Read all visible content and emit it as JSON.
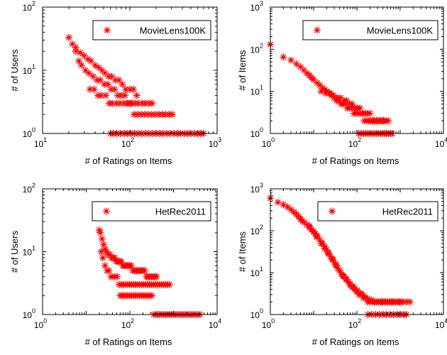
{
  "colors": {
    "marker": "#ff0000",
    "axis": "#000000",
    "background": "#ffffff"
  },
  "chart_data": [
    {
      "type": "scatter",
      "xlabel": "# of Ratings on Items",
      "ylabel": "# of Users",
      "xscale": "log",
      "yscale": "log",
      "xlim": [
        10,
        1000
      ],
      "ylim": [
        1,
        100
      ],
      "xticks": [
        {
          "base": "10",
          "exp": "1"
        },
        {
          "base": "10",
          "exp": "2"
        },
        {
          "base": "10",
          "exp": "3"
        }
      ],
      "yticks": [
        {
          "base": "10",
          "exp": "0"
        },
        {
          "base": "10",
          "exp": "1"
        },
        {
          "base": "10",
          "exp": "2"
        }
      ],
      "marker": "asterisk",
      "grid": false,
      "legend": {
        "entries": [
          "MovieLens100K"
        ],
        "placement": "top-right"
      },
      "series": [
        {
          "name": "MovieLens100K",
          "x": [
            20,
            22,
            24,
            27,
            30,
            33,
            36,
            40,
            44,
            48,
            52,
            57,
            62,
            68,
            75,
            82,
            90,
            100,
            110,
            120,
            24,
            26,
            28,
            31,
            34,
            38,
            42,
            46,
            51,
            56,
            61,
            67,
            73,
            80,
            88,
            96,
            105,
            115,
            125,
            138,
            150,
            165,
            180,
            35,
            39,
            43,
            47,
            53,
            58,
            63,
            70,
            77,
            85,
            93,
            102,
            112,
            123,
            135,
            148,
            162,
            178,
            195,
            215,
            235,
            255,
            280,
            305,
            60,
            65,
            71,
            78,
            86,
            94,
            103,
            113,
            124,
            136,
            150,
            165,
            182,
            200,
            220,
            240,
            265,
            290,
            320,
            350,
            380,
            420,
            460,
            500,
            550,
            600,
            650,
            700
          ],
          "y": [
            33,
            26,
            23,
            19,
            17,
            15,
            14,
            12,
            11,
            10,
            9,
            8,
            8,
            7,
            7,
            6,
            5,
            5,
            5,
            4,
            20,
            14,
            12,
            10,
            9,
            8,
            7,
            7,
            6,
            6,
            5,
            5,
            4,
            4,
            4,
            3,
            3,
            3,
            3,
            3,
            3,
            3,
            3,
            5,
            5,
            4,
            4,
            4,
            3,
            3,
            3,
            3,
            3,
            3,
            3,
            2,
            2,
            2,
            2,
            2,
            2,
            2,
            2,
            2,
            2,
            2,
            2,
            1,
            1,
            1,
            1,
            1,
            1,
            1,
            1,
            1,
            1,
            1,
            1,
            1,
            1,
            1,
            1,
            1,
            1,
            1,
            1,
            1,
            1,
            1,
            1,
            1,
            1,
            1,
            1
          ]
        }
      ]
    },
    {
      "type": "scatter",
      "xlabel": "# of Ratings on Items",
      "ylabel": "# of Items",
      "xscale": "log",
      "yscale": "log",
      "xlim": [
        1,
        10000
      ],
      "ylim": [
        1,
        1000
      ],
      "xticks": [
        {
          "base": "10",
          "exp": "0"
        },
        {
          "base": "10",
          "exp": "2"
        },
        {
          "base": "10",
          "exp": "4"
        }
      ],
      "yticks": [
        {
          "base": "10",
          "exp": "0"
        },
        {
          "base": "10",
          "exp": "1"
        },
        {
          "base": "10",
          "exp": "2"
        },
        {
          "base": "10",
          "exp": "3"
        }
      ],
      "marker": "asterisk",
      "grid": false,
      "legend": {
        "entries": [
          "MovieLens100K"
        ],
        "placement": "top-right"
      },
      "series": [
        {
          "name": "MovieLens100K",
          "x": [
            1,
            2,
            3,
            4,
            5,
            6,
            7,
            8,
            9,
            10,
            12,
            14,
            16,
            18,
            20,
            23,
            26,
            30,
            34,
            38,
            43,
            48,
            54,
            60,
            68,
            76,
            85,
            95,
            106,
            118,
            132,
            148,
            165,
            185,
            205,
            230,
            260,
            290,
            330,
            370,
            420,
            470,
            530,
            15,
            19,
            24,
            29,
            35,
            42,
            50,
            58,
            67,
            78,
            90,
            103,
            118,
            135,
            155,
            175,
            200,
            225,
            250,
            280,
            320,
            360,
            400,
            110,
            125,
            140,
            160,
            180,
            200,
            225,
            250,
            280,
            310,
            350,
            390,
            430,
            480,
            530,
            600,
            650
          ],
          "y": [
            130,
            65,
            55,
            45,
            38,
            32,
            27,
            24,
            21,
            19,
            16,
            14,
            12,
            11,
            10,
            9,
            8,
            7,
            6,
            6,
            5,
            5,
            5,
            4,
            4,
            4,
            3,
            3,
            3,
            3,
            3,
            2,
            2,
            2,
            2,
            2,
            2,
            2,
            2,
            2,
            2,
            2,
            2,
            10,
            9,
            9,
            8,
            7,
            7,
            6,
            6,
            5,
            5,
            4,
            4,
            4,
            3,
            3,
            3,
            3,
            2,
            2,
            2,
            2,
            2,
            2,
            1,
            1,
            1,
            1,
            1,
            1,
            1,
            1,
            1,
            1,
            1,
            1,
            1,
            1,
            1,
            1,
            1
          ]
        }
      ]
    },
    {
      "type": "scatter",
      "xlabel": "# of Ratings on Items",
      "ylabel": "# of Users",
      "xscale": "log",
      "yscale": "log",
      "xlim": [
        1,
        10000
      ],
      "ylim": [
        1,
        100
      ],
      "xticks": [
        {
          "base": "10",
          "exp": "0"
        },
        {
          "base": "10",
          "exp": "2"
        },
        {
          "base": "10",
          "exp": "4"
        }
      ],
      "yticks": [
        {
          "base": "10",
          "exp": "0"
        },
        {
          "base": "10",
          "exp": "1"
        },
        {
          "base": "10",
          "exp": "2"
        }
      ],
      "marker": "asterisk",
      "grid": false,
      "legend": {
        "entries": [
          "HetRec2011"
        ],
        "placement": "top-right"
      },
      "series": [
        {
          "name": "HetRec2011",
          "x": [
            20,
            21,
            23,
            25,
            27,
            29,
            32,
            35,
            38,
            41,
            45,
            49,
            53,
            58,
            63,
            69,
            75,
            82,
            90,
            98,
            107,
            117,
            128,
            140,
            153,
            167,
            183,
            200,
            219,
            240,
            262,
            287,
            314,
            343,
            375,
            410,
            22,
            24,
            27,
            30,
            33,
            37,
            41,
            46,
            51,
            57,
            63,
            70,
            78,
            87,
            97,
            108,
            120,
            133,
            148,
            165,
            183,
            204,
            227,
            252,
            280,
            312,
            347,
            386,
            430,
            478,
            531,
            591,
            657,
            731,
            808,
            60,
            66,
            73,
            81,
            90,
            100,
            111,
            123,
            137,
            152,
            169,
            188,
            209,
            232,
            258,
            287,
            319,
            355,
            395,
            439,
            488,
            542,
            603,
            670,
            745,
            828,
            920,
            1023,
            1137,
            1264,
            1405,
            1562,
            1736,
            1930,
            2145,
            2384,
            2650,
            2945,
            3274,
            3640,
            4046
          ],
          "y": [
            22,
            20,
            16,
            13,
            11,
            10,
            9,
            9,
            8,
            8,
            8,
            7,
            7,
            7,
            7,
            6,
            6,
            6,
            6,
            6,
            6,
            5,
            5,
            5,
            5,
            5,
            5,
            5,
            5,
            4,
            4,
            4,
            4,
            4,
            4,
            4,
            10,
            8,
            6,
            5,
            5,
            4,
            4,
            4,
            4,
            3,
            3,
            3,
            3,
            3,
            3,
            3,
            3,
            3,
            3,
            3,
            3,
            3,
            3,
            3,
            3,
            3,
            3,
            3,
            3,
            3,
            3,
            3,
            3,
            3,
            3,
            2,
            2,
            2,
            2,
            2,
            2,
            2,
            2,
            2,
            2,
            2,
            2,
            2,
            2,
            2,
            2,
            2,
            1,
            1,
            1,
            1,
            1,
            1,
            1,
            1,
            1,
            1,
            1,
            1,
            1,
            1,
            1,
            1,
            1,
            1,
            1,
            1,
            1,
            1,
            1,
            1
          ]
        }
      ]
    },
    {
      "type": "scatter",
      "xlabel": "# of Ratings on Items",
      "ylabel": "# of Items",
      "xscale": "log",
      "yscale": "log",
      "xlim": [
        1,
        10000
      ],
      "ylim": [
        1,
        1000
      ],
      "xticks": [
        {
          "base": "10",
          "exp": "0"
        },
        {
          "base": "10",
          "exp": "2"
        },
        {
          "base": "10",
          "exp": "4"
        }
      ],
      "yticks": [
        {
          "base": "10",
          "exp": "0"
        },
        {
          "base": "10",
          "exp": "1"
        },
        {
          "base": "10",
          "exp": "2"
        },
        {
          "base": "10",
          "exp": "3"
        }
      ],
      "marker": "asterisk",
      "grid": false,
      "legend": {
        "entries": [
          "HetRec2011"
        ],
        "placement": "top-right"
      },
      "series": [
        {
          "name": "HetRec2011",
          "x": [
            1,
            1.5,
            2,
            2.5,
            3,
            3.5,
            4,
            4.5,
            5,
            5.5,
            6,
            7,
            8,
            9,
            10,
            11,
            12,
            14,
            16,
            18,
            20,
            22,
            25,
            28,
            32,
            36,
            40,
            45,
            50,
            56,
            63,
            70,
            79,
            89,
            100,
            112,
            126,
            141,
            158,
            178,
            200,
            224,
            251,
            282,
            316,
            355,
            398,
            447,
            501,
            562,
            631,
            708,
            794,
            891,
            1000,
            8,
            10,
            12,
            15,
            18,
            22,
            27,
            33,
            40,
            48,
            58,
            70,
            85,
            102,
            123,
            148,
            179,
            216,
            260,
            313,
            378,
            455,
            549,
            661,
            797,
            960,
            1157,
            1394,
            1680,
            180,
            220,
            270,
            330,
            400,
            480,
            580,
            700,
            850,
            1000,
            1200,
            1400
          ],
          "y": [
            600,
            480,
            420,
            370,
            320,
            280,
            250,
            220,
            190,
            170,
            160,
            140,
            120,
            105,
            95,
            85,
            75,
            60,
            50,
            42,
            35,
            30,
            24,
            20,
            16,
            13,
            11,
            9,
            8,
            7,
            6,
            5,
            4.5,
            4,
            3.5,
            3,
            3,
            2.5,
            2.5,
            2,
            2,
            2,
            2,
            2,
            2,
            2,
            2,
            2,
            2,
            2,
            2,
            2,
            2,
            2,
            2,
            130,
            95,
            70,
            50,
            38,
            28,
            21,
            15,
            11,
            8.5,
            7,
            5.5,
            4.5,
            3.8,
            3.2,
            2.8,
            2.4,
            2.2,
            2,
            2,
            2,
            2,
            2,
            2,
            2,
            2,
            2,
            2,
            2,
            1,
            1,
            1,
            1,
            1,
            1,
            1,
            1,
            1,
            1,
            1,
            1
          ]
        }
      ]
    }
  ]
}
